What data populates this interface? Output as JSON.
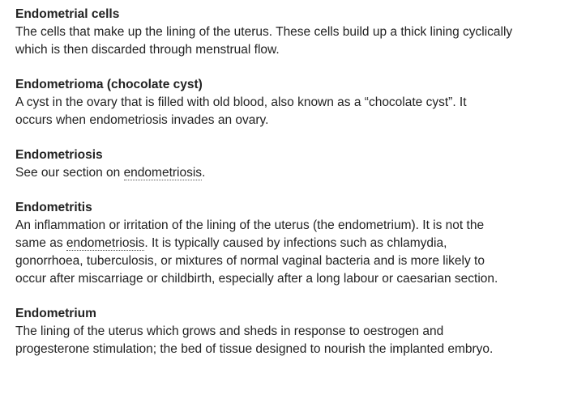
{
  "entries": [
    {
      "term": "Endometrial cells",
      "lines": [
        "The cells that make up the lining of the uterus. These cells build up a thick lining cyclically",
        "which is then discarded through menstrual flow."
      ]
    },
    {
      "term": "Endometrioma (chocolate cyst)",
      "lines": [
        "A cyst in the ovary that is filled with old blood, also known as a “chocolate cyst”. It",
        "occurs when endometriosis invades an ovary."
      ]
    },
    {
      "term": "Endometriosis",
      "pre_link": "See our section on ",
      "link": "endometriosis",
      "post_link": "."
    },
    {
      "term": "Endometritis",
      "line1": "An inflammation or irritation of the lining of the uterus (the endometrium). It is not the",
      "line2_pre": "same as ",
      "line2_link": "endometriosis",
      "line2_post": ". It is typically caused by infections such as chlamydia,",
      "line3": "gonorrhoea, tuberculosis, or mixtures of normal vaginal bacteria and is more likely to",
      "line4": "occur after miscarriage or childbirth, especially after a long labour or caesarian section."
    },
    {
      "term": "Endometrium",
      "lines": [
        "The lining of the uterus which grows and sheds in response to oestrogen and",
        "progesterone stimulation; the bed of tissue designed to nourish the implanted embryo."
      ]
    }
  ]
}
